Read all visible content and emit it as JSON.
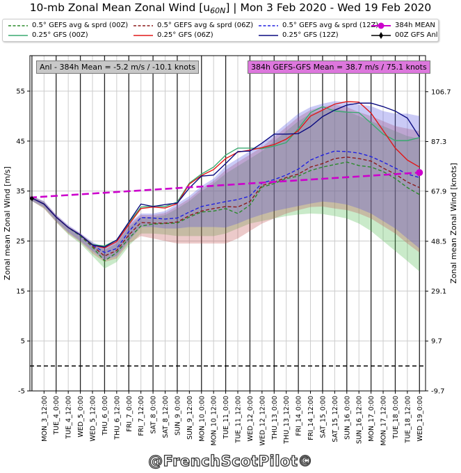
{
  "title": {
    "pre": "10-mb Zonal Mean Zonal Wind [u",
    "sub": "60N",
    "post": "] | Mon 3 Feb 2020 - Wed 19 Feb 2020"
  },
  "legend": [
    {
      "label": "0.5° GEFS avg & sprd (00Z)",
      "color": "#2a8a2a",
      "style": "dashed"
    },
    {
      "label": "0.5° GEFS avg & sprd (06Z)",
      "color": "#8b1a1a",
      "style": "dashed"
    },
    {
      "label": "0.5° GEFS avg & sprd (12Z)",
      "color": "#2020e0",
      "style": "dashed"
    },
    {
      "label": "384h MEAN",
      "color": "#cc00cc",
      "style": "marker-circle"
    },
    {
      "label": "0.25° GFS (00Z)",
      "color": "#3aaa70",
      "style": "solid"
    },
    {
      "label": "0.25° GFS (06Z)",
      "color": "#e01818",
      "style": "solid"
    },
    {
      "label": "0.25° GFS (12Z)",
      "color": "#0a0a80",
      "style": "solid"
    },
    {
      "label": "00Z GFS Anl",
      "color": "#000000",
      "style": "marker-diamond"
    }
  ],
  "annotations": {
    "left": "Anl - 384h Mean = -5.2 m/s / -10.1 knots",
    "right": "384h GEFS-GFS Mean = 38.7 m/s / 75.1 knots"
  },
  "watermark": "@FrenchScotPilot©",
  "chart_data": {
    "type": "line",
    "xlabel": "",
    "ylabel": "Zonal mean Zonal Wind [m/s]",
    "ylabel_right": "Zonal mean Zonal Wind [knots]",
    "x_units": "hours from Mon 3 Feb 2020 00Z",
    "xlim": [
      -2,
      390
    ],
    "ylim": [
      -5,
      62.1
    ],
    "yticks": [
      55,
      45,
      35,
      25,
      15,
      5,
      -5
    ],
    "yticks_right_knots": [
      106.7,
      87.3,
      67.9,
      48.5,
      29.1,
      9.7,
      -9.7
    ],
    "xtick_labels": [
      "MON_3_12:00",
      "TUE_4_0:00",
      "TUE_4_12:00",
      "WED_5_0:00",
      "WED_5_12:00",
      "THU_6_0:00",
      "THU_6_12:00",
      "FRI_7_0:00",
      "FRI_7_12:00",
      "SAT_8_0:00",
      "SAT_8_12:00",
      "SUN_9_0:00",
      "SUN_9_12:00",
      "MON_10_0:00",
      "MON_10_12:00",
      "TUE_11_0:00",
      "TUE_11_12:00",
      "WED_12_0:00",
      "WED_12_12:00",
      "THU_13_0:00",
      "THU_13_12:00",
      "FRI_14_0:00",
      "FRI_14_12:00",
      "SAT_15_0:00",
      "SAT_15_12:00",
      "SUN_16_0:00",
      "SUN_16_12:00",
      "MON_17_0:00",
      "MON_17_12:00",
      "TUE_18_0:00",
      "TUE_18_12:00",
      "WED_19_0:00"
    ],
    "xtick_hours_start": 12,
    "xtick_step_hours": 12,
    "grid": true,
    "x": [
      0,
      12,
      24,
      36,
      48,
      60,
      72,
      84,
      96,
      108,
      120,
      132,
      144,
      156,
      168,
      180,
      192,
      204,
      216,
      228,
      240,
      252,
      264,
      276,
      288,
      300,
      312,
      324,
      336,
      348,
      360,
      372,
      384
    ],
    "bands": [
      {
        "name": "GEFS spread 00Z",
        "color": "#4cb84c",
        "opacity": 0.3,
        "upper": [
          34,
          32.8,
          30,
          27.9,
          26.3,
          24.5,
          23.2,
          24.5,
          27.8,
          29.8,
          29.8,
          30.2,
          31.5,
          33,
          35,
          36.5,
          38.5,
          40,
          41.5,
          43,
          45,
          47,
          49,
          50.5,
          51.2,
          51.5,
          51,
          50,
          49,
          48,
          47,
          46,
          45.5
        ],
        "lower": [
          33,
          31.5,
          28.8,
          26.3,
          24.5,
          22,
          19.5,
          20.8,
          24,
          26.5,
          26.5,
          26.3,
          26,
          26,
          26,
          26,
          26.5,
          27.5,
          28.5,
          29,
          29.5,
          30,
          30.3,
          30.5,
          30.4,
          30,
          29.5,
          28.5,
          27,
          25,
          23,
          21,
          18.9
        ]
      },
      {
        "name": "GEFS spread 06Z",
        "color": "#c05050",
        "opacity": 0.3,
        "upper": [
          34,
          32.9,
          30.2,
          28,
          26.5,
          24.6,
          23.4,
          24.8,
          28.2,
          30.2,
          30.2,
          30.6,
          32,
          33.5,
          35.5,
          37,
          39.2,
          40.8,
          42.3,
          43.8,
          45.8,
          47.8,
          49.8,
          51.2,
          51.9,
          52.3,
          51.8,
          50.8,
          50,
          49,
          48,
          47.5,
          47
        ],
        "lower": [
          33,
          31.5,
          28.8,
          26.5,
          24.8,
          22.5,
          20.8,
          21.5,
          24.5,
          26,
          25.5,
          25,
          24.5,
          24.5,
          24.5,
          24.5,
          24.5,
          25.5,
          27,
          28.5,
          29.5,
          30.5,
          31.2,
          31.8,
          31.9,
          31.5,
          31.2,
          30.5,
          29.5,
          28,
          26.5,
          24.5,
          22.7
        ]
      },
      {
        "name": "GEFS spread 12Z",
        "color": "#5050e0",
        "opacity": 0.3,
        "upper": [
          34,
          33,
          30.3,
          28.2,
          26.6,
          24.8,
          23.6,
          25,
          28.5,
          30.5,
          30.5,
          31,
          32.5,
          34,
          36,
          37.5,
          40,
          41.5,
          43,
          44.5,
          46.5,
          48.5,
          50.5,
          51.8,
          52.5,
          53,
          52.8,
          52.3,
          52,
          51,
          50.5,
          50.5,
          50
        ],
        "lower": [
          33,
          31.8,
          29,
          26.8,
          25,
          23,
          21.2,
          22,
          25,
          27.8,
          27.8,
          27.5,
          27.5,
          27.8,
          27.8,
          27.8,
          27.7,
          28.5,
          29.5,
          30.3,
          31,
          31.5,
          32,
          32.5,
          32.9,
          32.7,
          32.3,
          31.5,
          30.5,
          29,
          27.5,
          25.5,
          23.5
        ]
      }
    ],
    "series": [
      {
        "name": "0.5° GEFS avg (00Z)",
        "color": "#2a8a2a",
        "style": "dashed",
        "values": [
          33.6,
          32.4,
          29.8,
          27.7,
          26.0,
          23.8,
          21.0,
          22.7,
          25.5,
          28.0,
          28.4,
          28.5,
          28.6,
          29.8,
          30.8,
          31.0,
          31.5,
          30.5,
          32.2,
          35.8,
          36.5,
          37.5,
          38.0,
          39.1,
          39.8,
          40.3,
          40.8,
          40.1,
          39.8,
          38.9,
          37.5,
          35.7,
          34.3
        ]
      },
      {
        "name": "0.5° GEFS avg (06Z)",
        "color": "#8b1a1a",
        "style": "dashed",
        "values": [
          33.6,
          32.4,
          29.8,
          27.7,
          26.2,
          24.0,
          22.0,
          23.1,
          26.2,
          28.7,
          28.6,
          28.6,
          28.8,
          30.1,
          31.0,
          31.5,
          31.9,
          31.8,
          32.9,
          36.1,
          36.8,
          37.7,
          38.4,
          39.8,
          40.5,
          41.5,
          41.8,
          41.5,
          41.0,
          39.6,
          38.4,
          36.8,
          35.7
        ]
      },
      {
        "name": "0.5° GEFS avg (12Z)",
        "color": "#2020e0",
        "style": "dashed",
        "values": [
          33.6,
          32.4,
          29.8,
          27.7,
          26.2,
          24.2,
          22.7,
          23.5,
          26.9,
          29.7,
          29.6,
          29.4,
          29.6,
          30.8,
          31.9,
          32.4,
          32.9,
          33.3,
          34.0,
          36.6,
          37.3,
          38.2,
          39.4,
          41.2,
          42.2,
          43.0,
          42.9,
          42.6,
          41.9,
          40.8,
          39.6,
          38.4,
          37.7
        ]
      },
      {
        "name": "0.25° GFS (00Z)",
        "color": "#3aaa70",
        "style": "solid",
        "values": [
          33.6,
          32.4,
          29.8,
          27.7,
          26.2,
          24.3,
          24.0,
          25.2,
          28.6,
          31.8,
          32.0,
          31.9,
          32.8,
          36.6,
          38.4,
          39.8,
          42.2,
          43.6,
          43.6,
          43.5,
          44.0,
          44.7,
          47.5,
          50.7,
          51.9,
          51.0,
          50.8,
          50.7,
          48.6,
          46.4,
          45.1,
          45.1,
          45.7
        ]
      },
      {
        "name": "0.25° GFS (06Z)",
        "color": "#e01818",
        "style": "solid",
        "values": [
          33.6,
          32.4,
          29.8,
          27.7,
          26.2,
          24.2,
          23.6,
          24.9,
          28.3,
          31.5,
          31.8,
          31.6,
          32.5,
          36.4,
          38.1,
          39.3,
          41.5,
          42.8,
          43.2,
          43.7,
          44.3,
          45.4,
          47.1,
          50.0,
          51.2,
          52.4,
          52.9,
          52.8,
          50.6,
          47.1,
          43.6,
          41.2,
          39.8
        ]
      },
      {
        "name": "0.25° GFS (12Z)",
        "color": "#0a0a80",
        "style": "solid",
        "values": [
          33.6,
          32.4,
          29.8,
          27.7,
          26.2,
          24.2,
          23.8,
          25.2,
          28.8,
          32.4,
          31.9,
          32.3,
          32.6,
          35.6,
          38.0,
          38.2,
          40.5,
          42.9,
          43.0,
          44.6,
          46.4,
          46.4,
          46.5,
          47.9,
          49.9,
          51.2,
          52.2,
          52.6,
          52.6,
          51.9,
          51.0,
          49.6,
          45.8
        ]
      }
    ],
    "mean_line": {
      "name": "384h MEAN",
      "color": "#cc00cc",
      "start": [
        -2,
        33.7
      ],
      "end": [
        384,
        38.7
      ]
    },
    "analysis_point": {
      "name": "00Z GFS Anl",
      "x": 0,
      "y": 33.5
    },
    "zero_line": 0
  }
}
